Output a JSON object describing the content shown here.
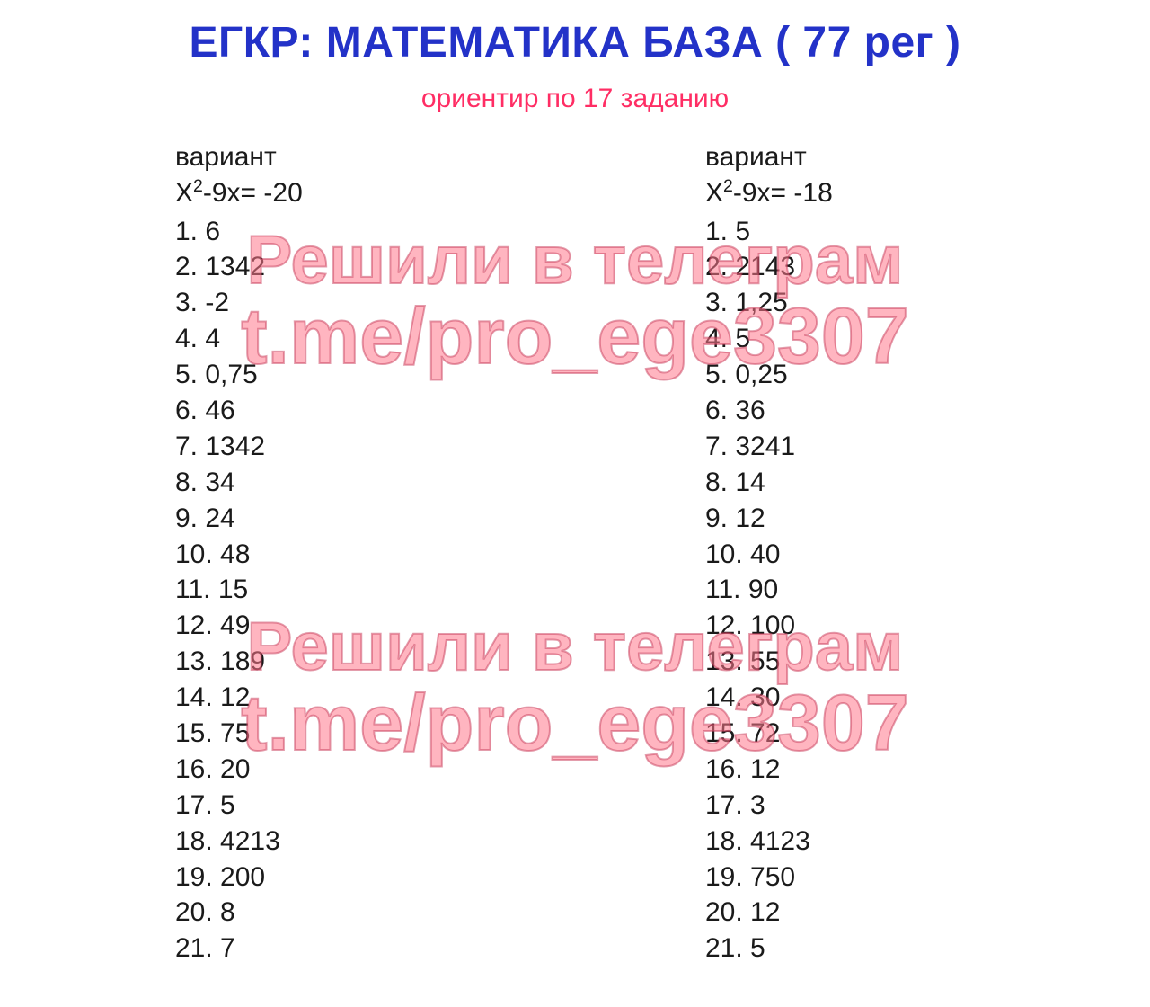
{
  "title": "ЕГКР: МАТЕМАТИКА БАЗА ( 77 рег )",
  "subtitle": "ориентир по 17 заданию",
  "colors": {
    "title": "#2332c8",
    "subtitle": "#ff2d64",
    "text": "#1a1a1a",
    "watermark_fill": "rgba(255,120,140,0.55)",
    "watermark_stroke": "rgba(200,60,90,0.5)",
    "background": "#ffffff"
  },
  "typography": {
    "title_fontsize": 48,
    "subtitle_fontsize": 30,
    "body_fontsize": 30,
    "watermark_line1_fontsize": 76,
    "watermark_line2_fontsize": 88,
    "title_weight": 700,
    "body_weight": 500
  },
  "variants": [
    {
      "label": "вариант",
      "equation_prefix": "X",
      "equation_exp": "2",
      "equation_rest": "-9x= -20",
      "answers": [
        "1. 6",
        "2. 1342",
        "3. -2",
        "4. 4",
        "5. 0,75",
        "6. 46",
        "7. 1342",
        "8. 34",
        "9. 24",
        "10. 48",
        "11. 15",
        "12. 49",
        "13. 189",
        "14. 12",
        "15. 75",
        "16. 20",
        "17. 5",
        "18. 4213",
        "19. 200",
        "20. 8",
        "21. 7"
      ]
    },
    {
      "label": "вариант",
      "equation_prefix": "X",
      "equation_exp": "2",
      "equation_rest": "-9x= -18",
      "answers": [
        "1. 5",
        "2. 2143",
        "3. 1,25",
        "4. 5",
        "5. 0,25",
        "6. 36",
        "7. 3241",
        "8. 14",
        "9. 12",
        "10. 40",
        "11. 90",
        "12. 100",
        "13. 55",
        "14. 30",
        "15. 72",
        "16. 12",
        "17. 3",
        "18. 4123",
        "19. 750",
        "20. 12",
        "21. 5"
      ]
    }
  ],
  "watermark": {
    "line1": "Решили в телеграм",
    "line2": "t.me/pro_ege3307"
  }
}
